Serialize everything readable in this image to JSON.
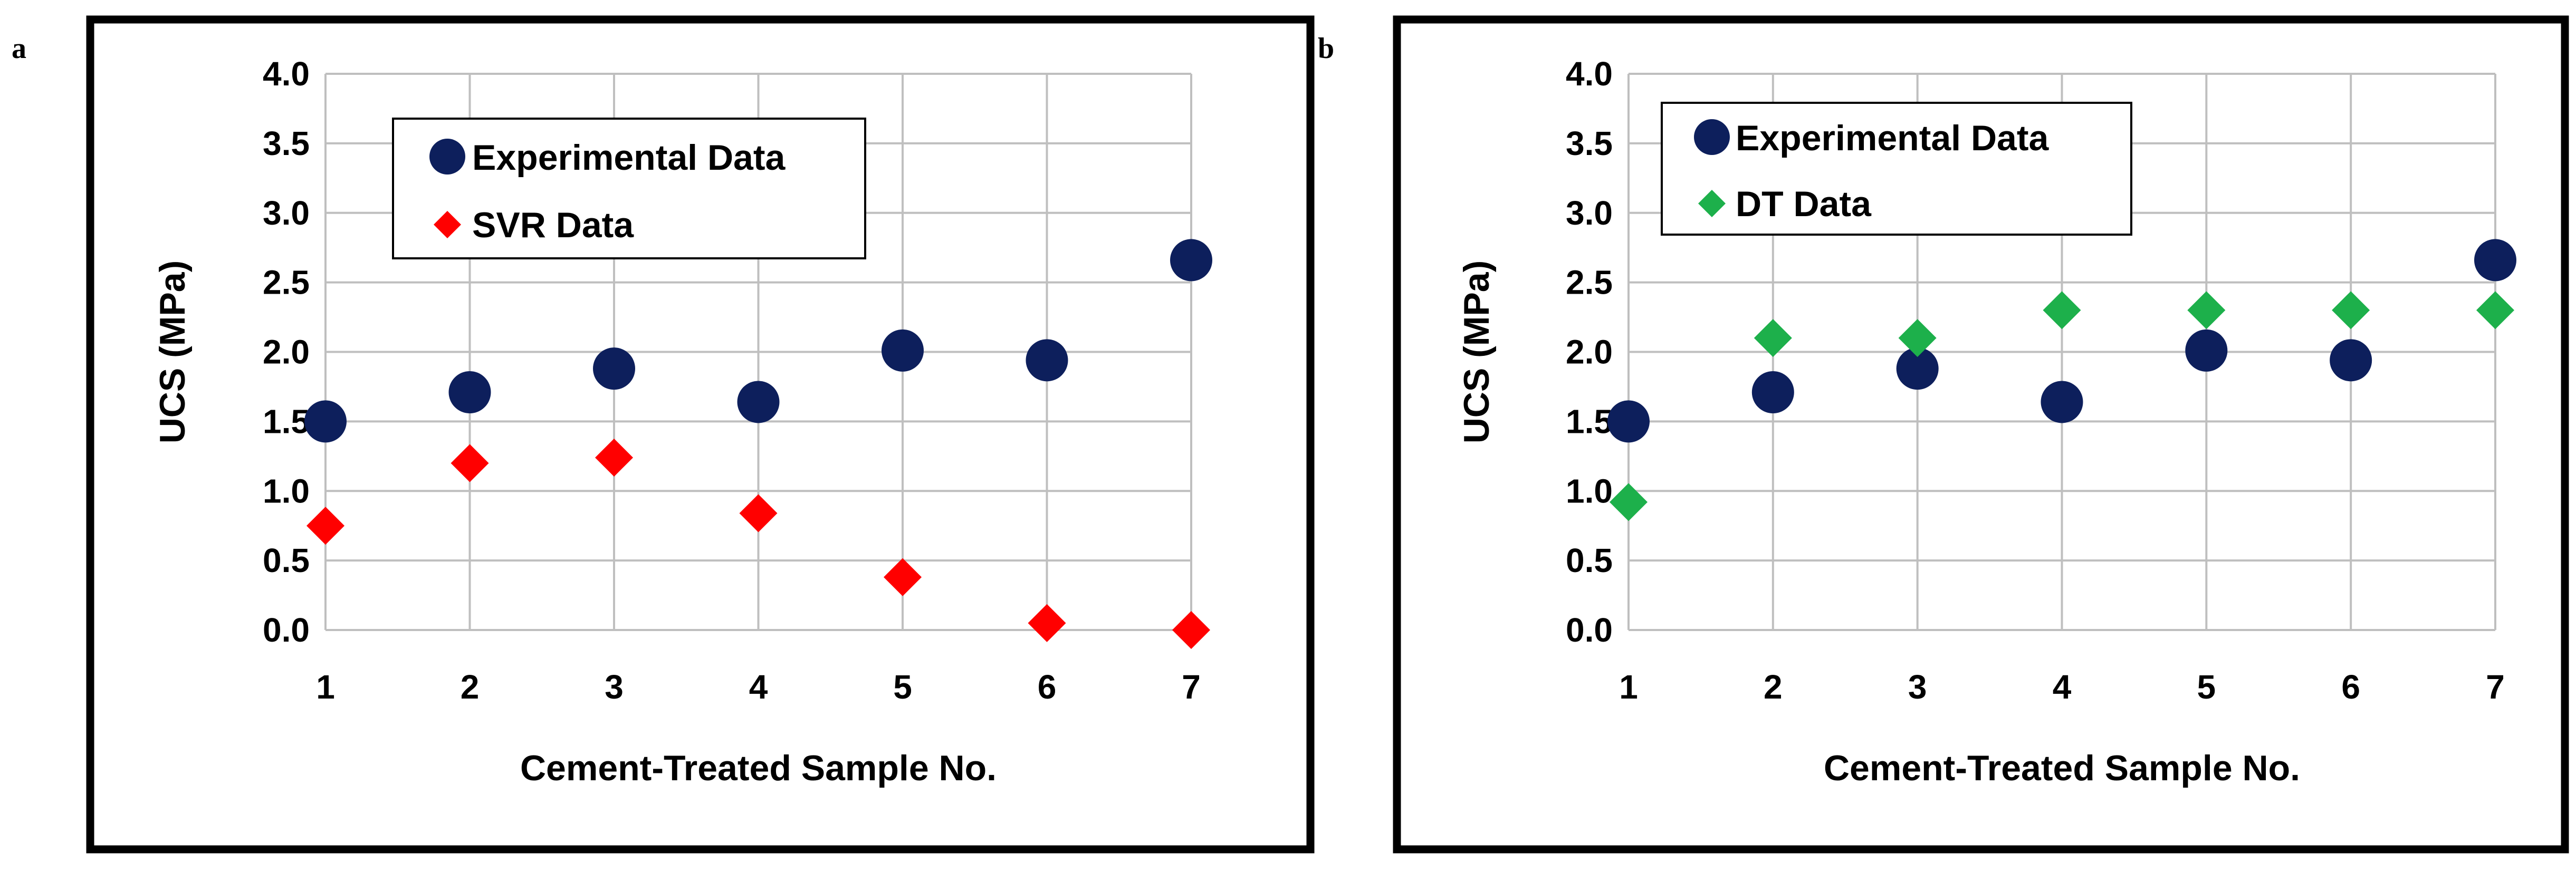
{
  "panels": [
    {
      "letter": "a"
    },
    {
      "letter": "b"
    }
  ],
  "chart_data": [
    {
      "type": "scatter",
      "x": [
        1,
        2,
        3,
        4,
        5,
        6,
        7
      ],
      "series": [
        {
          "name": "Experimental Data",
          "marker": "circle",
          "color": "#0D1F5C",
          "values": [
            1.5,
            1.71,
            1.88,
            1.64,
            2.01,
            1.94,
            2.66
          ]
        },
        {
          "name": "SVR Data",
          "marker": "diamond",
          "color": "#FF0000",
          "values": [
            0.75,
            1.2,
            1.24,
            0.84,
            0.38,
            0.05,
            0.0
          ]
        }
      ],
      "xlabel": "Cement-Treated Sample No.",
      "ylabel": "UCS (MPa)",
      "xticks": [
        "1",
        "2",
        "3",
        "4",
        "5",
        "6",
        "7"
      ],
      "yticks": [
        "0.0",
        "0.5",
        "1.0",
        "1.5",
        "2.0",
        "2.5",
        "3.0",
        "3.5",
        "4.0"
      ],
      "ylim": [
        0,
        4
      ],
      "grid": true,
      "legend": "top-left"
    },
    {
      "type": "scatter",
      "x": [
        1,
        2,
        3,
        4,
        5,
        6,
        7
      ],
      "series": [
        {
          "name": "Experimental Data",
          "marker": "circle",
          "color": "#0D1F5C",
          "values": [
            1.5,
            1.71,
            1.88,
            1.64,
            2.01,
            1.94,
            2.66
          ]
        },
        {
          "name": "DT Data",
          "marker": "diamond",
          "color": "#1DB04B",
          "values": [
            0.92,
            2.1,
            2.1,
            2.3,
            2.3,
            2.3,
            2.3
          ]
        }
      ],
      "xlabel": "Cement-Treated Sample No.",
      "ylabel": "UCS (MPa)",
      "xticks": [
        "1",
        "2",
        "3",
        "4",
        "5",
        "6",
        "7"
      ],
      "yticks": [
        "0.0",
        "0.5",
        "1.0",
        "1.5",
        "2.0",
        "2.5",
        "3.0",
        "3.5",
        "4.0"
      ],
      "ylim": [
        0,
        4
      ],
      "grid": true,
      "legend": "top-left"
    }
  ]
}
